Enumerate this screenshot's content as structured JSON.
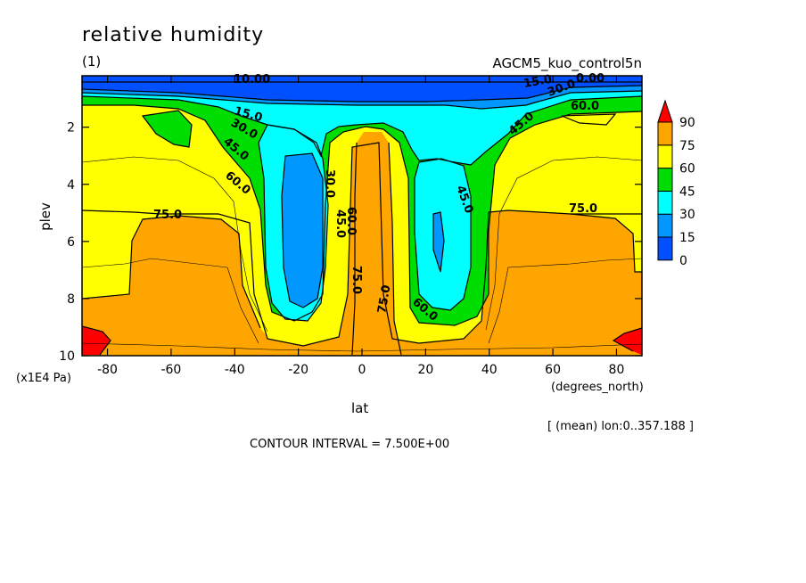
{
  "chart_data": {
    "type": "contour",
    "title": "relative humidity",
    "subtitle": "(1)",
    "source_label": "AGCM5_kuo_control5n",
    "xlabel": "lat",
    "x_units": "(degrees_north)",
    "ylabel": "plev",
    "y_units": "(x1E4 Pa)",
    "x_ticks": [
      -80,
      -60,
      -40,
      -20,
      0,
      20,
      40,
      60,
      80
    ],
    "y_ticks": [
      2,
      4,
      6,
      8,
      10
    ],
    "xlim": [
      -88,
      88
    ],
    "ylim": [
      10,
      0.2
    ],
    "averaging_note": "[ (mean) lon:0..357.188 ]",
    "contour_interval": "CONTOUR INTERVAL = 7.500E+00",
    "colorbar": {
      "levels": [
        "0",
        "15",
        "30",
        "45",
        "60",
        "75",
        "90"
      ],
      "colors": [
        "#0050ff",
        "#0098ff",
        "#00ffff",
        "#00dd00",
        "#ffff00",
        "#ffa500",
        "#ff0000"
      ]
    },
    "contour_labels": [
      "10.00",
      "15.0",
      "30.0",
      "45.0",
      "60.0",
      "75.0",
      "30.0",
      "45.0",
      "60.0",
      "75.0",
      "75.0",
      "45.0",
      "60.0",
      "75.0",
      "45.0",
      "30.0",
      "60.0",
      "75.0",
      "15.0",
      "0.00"
    ]
  }
}
